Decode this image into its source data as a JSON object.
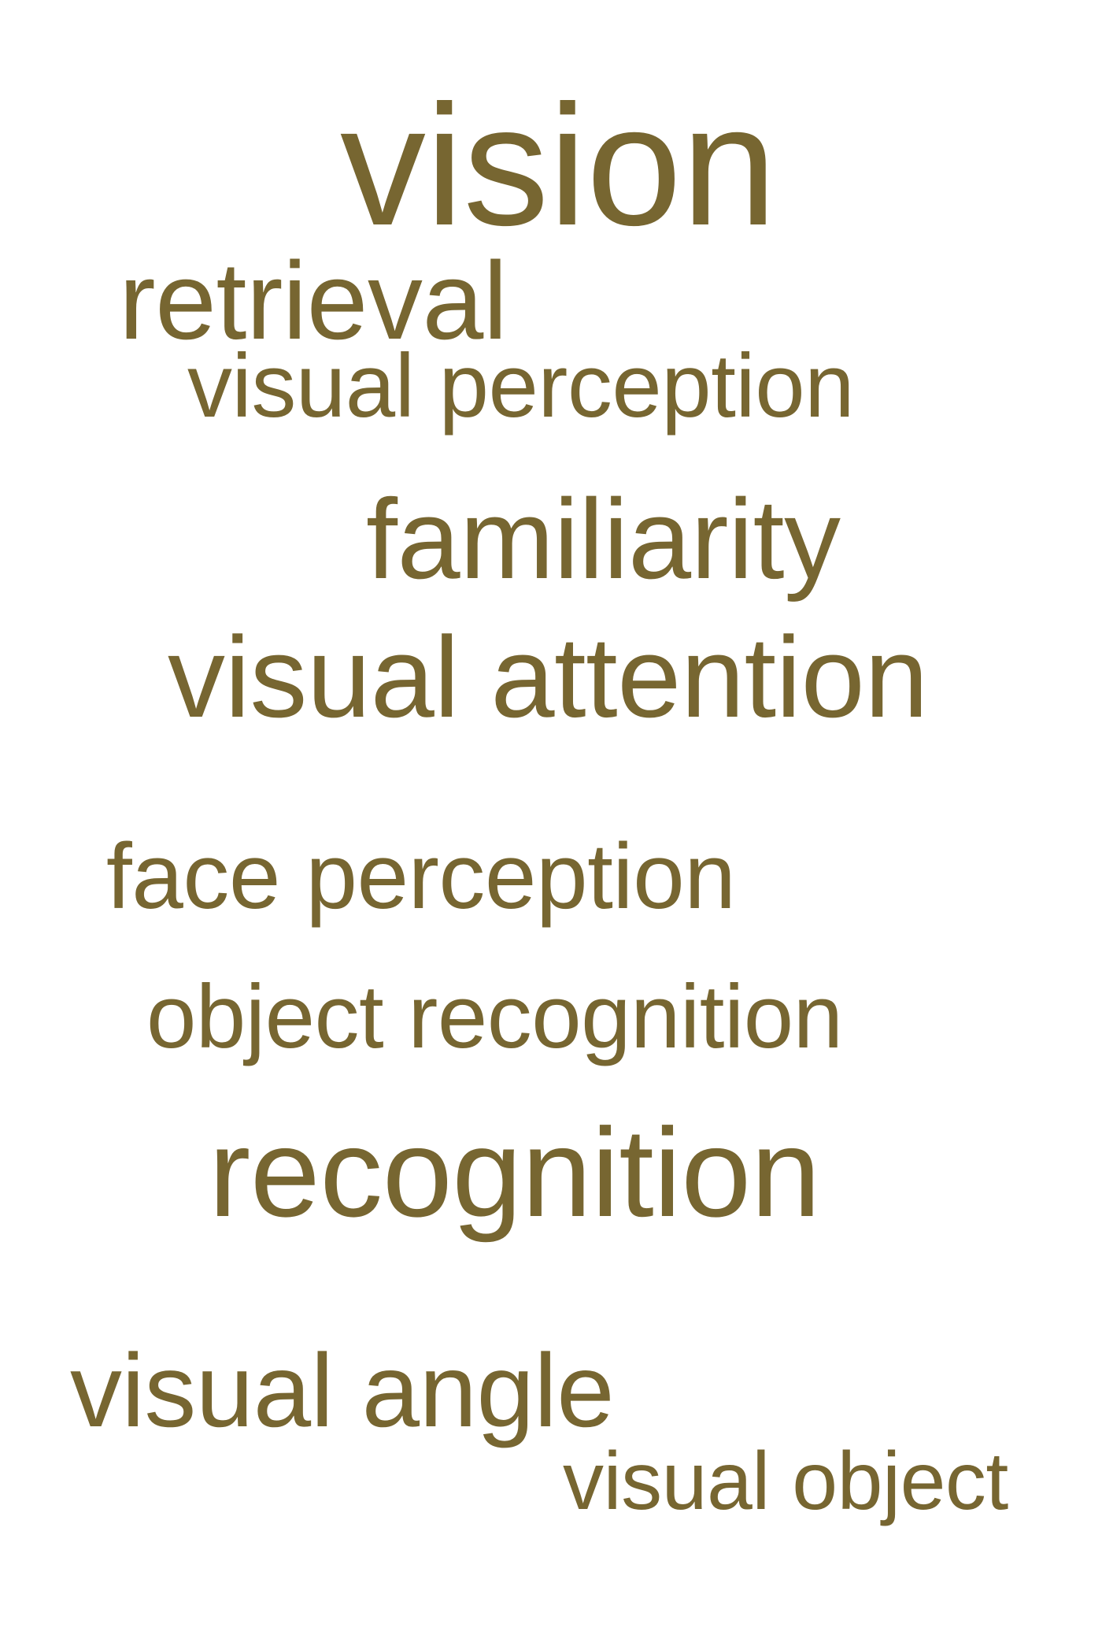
{
  "color": "#776631",
  "words": [
    {
      "text": "vision"
    },
    {
      "text": "retrieval"
    },
    {
      "text": "visual perception"
    },
    {
      "text": "familiarity"
    },
    {
      "text": "visual attention"
    },
    {
      "text": "face perception"
    },
    {
      "text": "object recognition"
    },
    {
      "text": "recognition"
    },
    {
      "text": "visual angle"
    },
    {
      "text": "visual object"
    }
  ]
}
